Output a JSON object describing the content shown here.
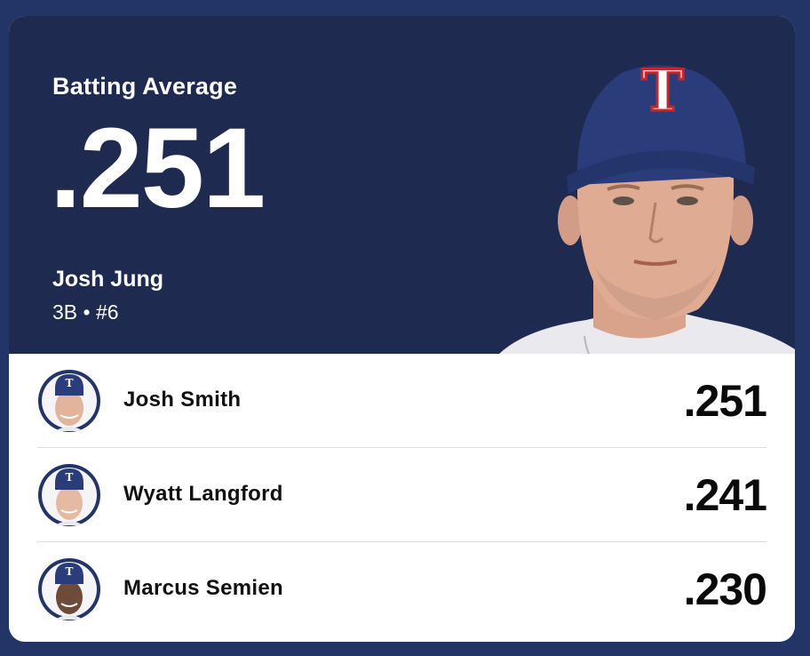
{
  "colors": {
    "page_background": "#233466",
    "hero_background": "#1f2a51",
    "list_background": "#ffffff",
    "cap_navy": "#2a3d7a",
    "cap_red": "#c0282d",
    "text_dark": "#0a0a0a"
  },
  "leader": {
    "stat_label": "Batting Average",
    "stat_value": ".251",
    "name": "Josh Jung",
    "meta": "3B • #6",
    "photo_icon": "player-headshot",
    "cap_logo": "T"
  },
  "leaderboard": [
    {
      "name": "Josh Smith",
      "value": ".251",
      "avatar_icon": "player-avatar"
    },
    {
      "name": "Wyatt Langford",
      "value": ".241",
      "avatar_icon": "player-avatar"
    },
    {
      "name": "Marcus Semien",
      "value": ".230",
      "avatar_icon": "player-avatar"
    }
  ]
}
